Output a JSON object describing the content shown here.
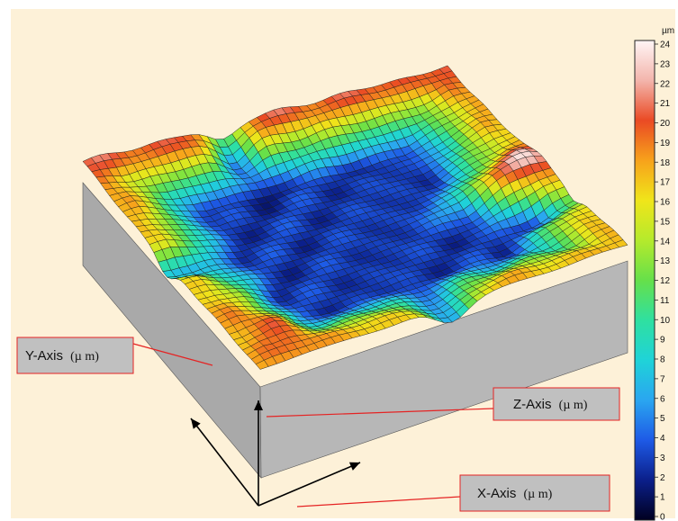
{
  "chart_data": {
    "type": "surface3d",
    "title": "",
    "colorbar": {
      "unit": "µm",
      "min": 0,
      "max": 24,
      "ticks": [
        "0",
        "1",
        "2",
        "3",
        "4",
        "5",
        "6",
        "7",
        "8",
        "9",
        "10",
        "11",
        "12",
        "13",
        "14",
        "15",
        "16",
        "17",
        "18",
        "19",
        "20",
        "21",
        "22",
        "23",
        "24"
      ],
      "colors": [
        "#000020",
        "#0b1f8a",
        "#1e5ae6",
        "#2aa6f0",
        "#1fd3d8",
        "#2fe0a0",
        "#66e04a",
        "#b5ea2c",
        "#f0e51a",
        "#f7a21b",
        "#ea4a24",
        "#f3b5ac",
        "#fff5f5"
      ]
    },
    "axes": {
      "x": {
        "name": "X-Axis",
        "unit": "(µ m)"
      },
      "y": {
        "name": "Y-Axis",
        "unit": "(µ m)"
      },
      "z": {
        "name": "Z-Axis",
        "unit": "(µ m)"
      }
    }
  },
  "colors": {
    "background": "#fdf1d8",
    "callout_fill": "#c0c0c0",
    "callout_border": "#e52323",
    "block_side": "#a8a8a8",
    "mesh_line": "#1a1a1a"
  }
}
